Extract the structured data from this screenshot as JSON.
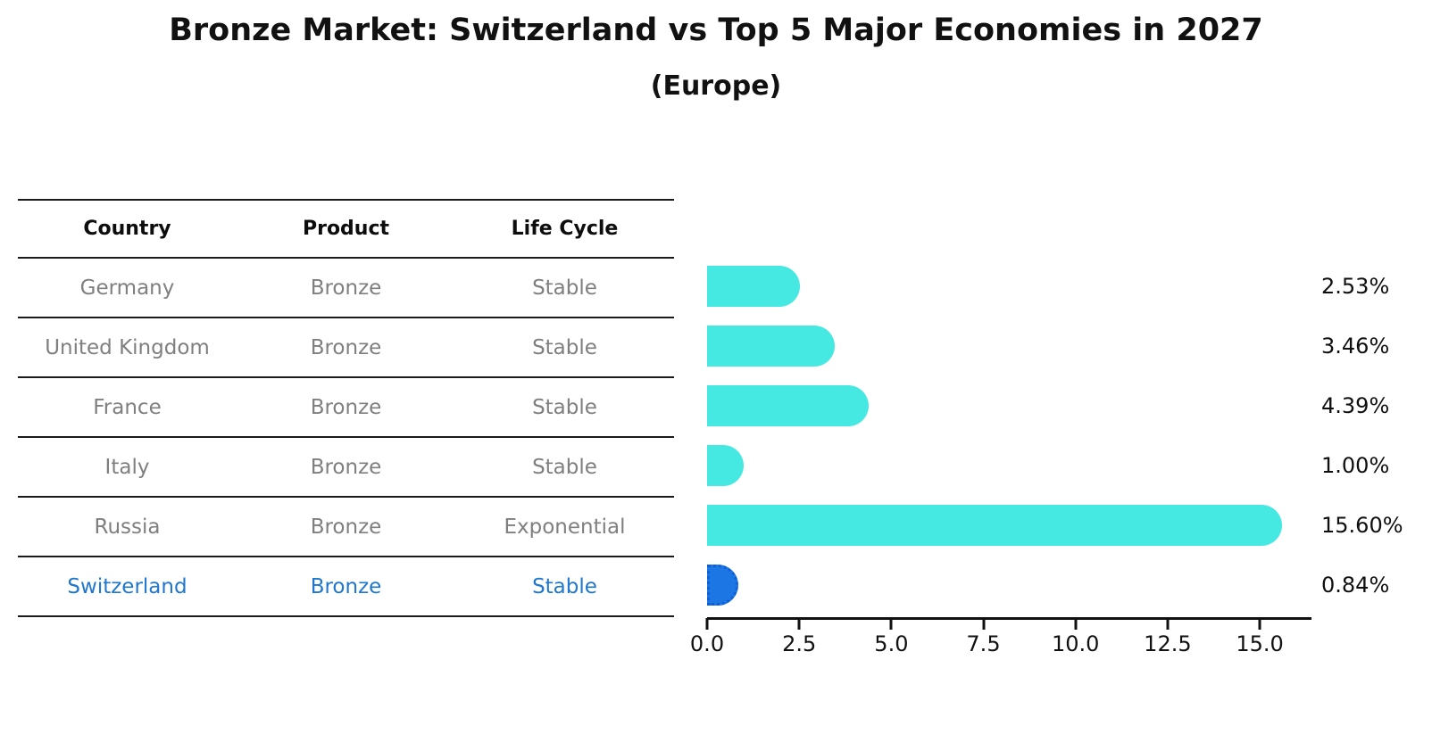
{
  "title": "Bronze Market: Switzerland vs Top 5 Major Economies in 2027",
  "subtitle": "(Europe)",
  "table": {
    "headers": {
      "country": "Country",
      "product": "Product",
      "life_cycle": "Life Cycle"
    },
    "rows": [
      {
        "country": "Germany",
        "product": "Bronze",
        "life_cycle": "Stable"
      },
      {
        "country": "United Kingdom",
        "product": "Bronze",
        "life_cycle": "Stable"
      },
      {
        "country": "France",
        "product": "Bronze",
        "life_cycle": "Stable"
      },
      {
        "country": "Italy",
        "product": "Bronze",
        "life_cycle": "Stable"
      },
      {
        "country": "Russia",
        "product": "Bronze",
        "life_cycle": "Exponential"
      },
      {
        "country": "Switzerland",
        "product": "Bronze",
        "life_cycle": "Stable"
      }
    ],
    "highlight_row_index": 5
  },
  "chart_data": {
    "type": "bar",
    "orientation": "horizontal",
    "title": "Bronze Market: Switzerland vs Top 5 Major Economies in 2027",
    "subtitle": "(Europe)",
    "categories": [
      "Germany",
      "United Kingdom",
      "France",
      "Italy",
      "Russia",
      "Switzerland"
    ],
    "values": [
      2.53,
      3.46,
      4.39,
      1.0,
      15.6,
      0.84
    ],
    "bar_labels": [
      "2.53%",
      "3.46%",
      "4.39%",
      "1.00%",
      "15.60%",
      "0.84%"
    ],
    "x_ticks": [
      0.0,
      2.5,
      5.0,
      7.5,
      10.0,
      12.5,
      15.0
    ],
    "x_tick_labels": [
      "0.0",
      "2.5",
      "5.0",
      "7.5",
      "10.0",
      "12.5",
      "15.0"
    ],
    "xlim": [
      0,
      16.4
    ],
    "grid": false,
    "legend": false,
    "highlight_index": 5,
    "colors": {
      "bar": "#46E8E2",
      "highlight_bar": "#1C76E3",
      "highlight_border": "#0E5FD6",
      "row_text": "#7f7f7f",
      "highlight_text": "#1F77CF",
      "axis": "#111111"
    }
  }
}
